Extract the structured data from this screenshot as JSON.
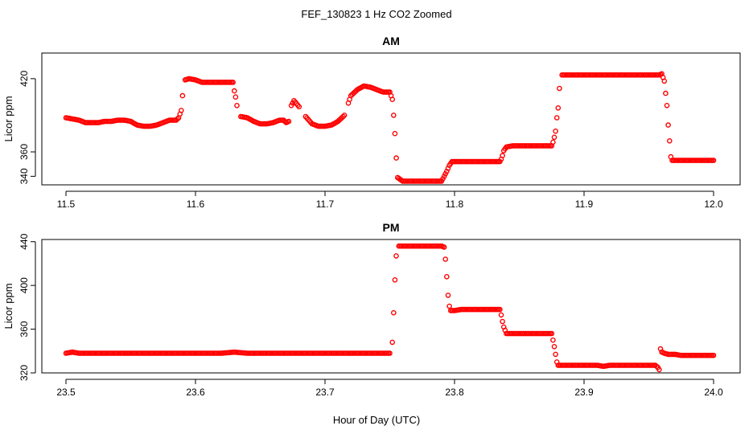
{
  "figure": {
    "title": "FEF_130823  1 Hz CO2 Zoomed",
    "xlabel": "Hour of Day (UTC)"
  },
  "colors": {
    "points": "#ff0000",
    "axis": "#000000",
    "background": "#ffffff"
  },
  "chart_data": [
    {
      "type": "scatter",
      "title": "AM",
      "ylabel": "Licor ppm",
      "xlim": [
        11.5,
        12.0
      ],
      "ylim": [
        333,
        441
      ],
      "xticks": [
        "11.5",
        "11.6",
        "11.7",
        "11.8",
        "11.9",
        "12.0"
      ],
      "yticks": [
        "340",
        "360",
        "420"
      ],
      "grid": false,
      "marker": "open circle",
      "points": [
        [
          11.5,
          388
        ],
        [
          11.505,
          387
        ],
        [
          11.51,
          386
        ],
        [
          11.515,
          384
        ],
        [
          11.52,
          384
        ],
        [
          11.525,
          384
        ],
        [
          11.53,
          385
        ],
        [
          11.535,
          385
        ],
        [
          11.54,
          386
        ],
        [
          11.545,
          386
        ],
        [
          11.55,
          385
        ],
        [
          11.555,
          382
        ],
        [
          11.56,
          381
        ],
        [
          11.565,
          381
        ],
        [
          11.57,
          382
        ],
        [
          11.575,
          384
        ],
        [
          11.58,
          386
        ],
        [
          11.585,
          386
        ],
        [
          11.587,
          388
        ],
        [
          11.588,
          391
        ],
        [
          11.589,
          394
        ],
        [
          11.59,
          406
        ],
        [
          11.592,
          419
        ],
        [
          11.595,
          420
        ],
        [
          11.6,
          419
        ],
        [
          11.605,
          417
        ],
        [
          11.61,
          417
        ],
        [
          11.615,
          417
        ],
        [
          11.62,
          417
        ],
        [
          11.625,
          417
        ],
        [
          11.629,
          417
        ],
        [
          11.63,
          410
        ],
        [
          11.631,
          405
        ],
        [
          11.632,
          398
        ],
        [
          11.635,
          389
        ],
        [
          11.64,
          388
        ],
        [
          11.645,
          385
        ],
        [
          11.65,
          383
        ],
        [
          11.655,
          383
        ],
        [
          11.66,
          384
        ],
        [
          11.665,
          386
        ],
        [
          11.668,
          386
        ],
        [
          11.67,
          384
        ],
        [
          11.672,
          385
        ],
        [
          11.674,
          398
        ],
        [
          11.676,
          402
        ],
        [
          11.68,
          397
        ],
        [
          11.685,
          389
        ],
        [
          11.69,
          383
        ],
        [
          11.695,
          381
        ],
        [
          11.7,
          381
        ],
        [
          11.705,
          382
        ],
        [
          11.71,
          385
        ],
        [
          11.715,
          390
        ],
        [
          11.718,
          400
        ],
        [
          11.72,
          406
        ],
        [
          11.725,
          411
        ],
        [
          11.73,
          414
        ],
        [
          11.735,
          413
        ],
        [
          11.74,
          411
        ],
        [
          11.745,
          409
        ],
        [
          11.75,
          409
        ],
        [
          11.752,
          403
        ],
        [
          11.753,
          390
        ],
        [
          11.754,
          375
        ],
        [
          11.755,
          355
        ],
        [
          11.756,
          339
        ],
        [
          11.76,
          336
        ],
        [
          11.765,
          336
        ],
        [
          11.77,
          336
        ],
        [
          11.775,
          336
        ],
        [
          11.78,
          336
        ],
        [
          11.785,
          336
        ],
        [
          11.79,
          336
        ],
        [
          11.792,
          340
        ],
        [
          11.794,
          344
        ],
        [
          11.796,
          349
        ],
        [
          11.798,
          352
        ],
        [
          11.805,
          352
        ],
        [
          11.81,
          352
        ],
        [
          11.815,
          352
        ],
        [
          11.82,
          352
        ],
        [
          11.825,
          352
        ],
        [
          11.83,
          352
        ],
        [
          11.835,
          352
        ],
        [
          11.836,
          354
        ],
        [
          11.837,
          357
        ],
        [
          11.838,
          361
        ],
        [
          11.84,
          364
        ],
        [
          11.845,
          365
        ],
        [
          11.85,
          365
        ],
        [
          11.855,
          365
        ],
        [
          11.86,
          365
        ],
        [
          11.865,
          365
        ],
        [
          11.87,
          365
        ],
        [
          11.875,
          365
        ],
        [
          11.876,
          368
        ],
        [
          11.877,
          372
        ],
        [
          11.878,
          377
        ],
        [
          11.879,
          388
        ],
        [
          11.88,
          396
        ],
        [
          11.881,
          412
        ],
        [
          11.883,
          423
        ],
        [
          11.89,
          423
        ],
        [
          11.9,
          423
        ],
        [
          11.91,
          423
        ],
        [
          11.92,
          423
        ],
        [
          11.93,
          423
        ],
        [
          11.94,
          423
        ],
        [
          11.95,
          423
        ],
        [
          11.958,
          423
        ],
        [
          11.96,
          424
        ],
        [
          11.962,
          418
        ],
        [
          11.963,
          408
        ],
        [
          11.964,
          398
        ],
        [
          11.965,
          382
        ],
        [
          11.966,
          369
        ],
        [
          11.967,
          356
        ],
        [
          11.968,
          353
        ],
        [
          11.97,
          353
        ],
        [
          11.975,
          353
        ],
        [
          11.98,
          353
        ],
        [
          11.985,
          353
        ],
        [
          11.99,
          353
        ],
        [
          11.995,
          353
        ],
        [
          12.0,
          353
        ]
      ]
    },
    {
      "type": "scatter",
      "title": "PM",
      "ylabel": "Licor ppm",
      "xlim": [
        23.5,
        24.0
      ],
      "ylim": [
        320,
        442
      ],
      "xticks": [
        "23.5",
        "23.6",
        "23.7",
        "23.8",
        "23.9",
        "24.0"
      ],
      "yticks": [
        "320",
        "360",
        "400",
        "440"
      ],
      "grid": false,
      "marker": "open circle",
      "points": [
        [
          23.5,
          338
        ],
        [
          23.505,
          339
        ],
        [
          23.51,
          338
        ],
        [
          23.52,
          338
        ],
        [
          23.53,
          338
        ],
        [
          23.54,
          338
        ],
        [
          23.55,
          338
        ],
        [
          23.56,
          338
        ],
        [
          23.57,
          338
        ],
        [
          23.58,
          338
        ],
        [
          23.59,
          338
        ],
        [
          23.6,
          338
        ],
        [
          23.61,
          338
        ],
        [
          23.62,
          338
        ],
        [
          23.63,
          339
        ],
        [
          23.64,
          338
        ],
        [
          23.65,
          338
        ],
        [
          23.66,
          338
        ],
        [
          23.67,
          338
        ],
        [
          23.68,
          338
        ],
        [
          23.69,
          338
        ],
        [
          23.7,
          338
        ],
        [
          23.71,
          338
        ],
        [
          23.72,
          338
        ],
        [
          23.73,
          338
        ],
        [
          23.74,
          338
        ],
        [
          23.75,
          338
        ],
        [
          23.752,
          348
        ],
        [
          23.753,
          375
        ],
        [
          23.754,
          405
        ],
        [
          23.755,
          427
        ],
        [
          23.757,
          436
        ],
        [
          23.76,
          436
        ],
        [
          23.765,
          436
        ],
        [
          23.77,
          436
        ],
        [
          23.775,
          436
        ],
        [
          23.78,
          436
        ],
        [
          23.785,
          436
        ],
        [
          23.79,
          436
        ],
        [
          23.792,
          435
        ],
        [
          23.793,
          424
        ],
        [
          23.794,
          408
        ],
        [
          23.795,
          391
        ],
        [
          23.796,
          381
        ],
        [
          23.797,
          377
        ],
        [
          23.8,
          377
        ],
        [
          23.805,
          378
        ],
        [
          23.81,
          378
        ],
        [
          23.815,
          378
        ],
        [
          23.82,
          378
        ],
        [
          23.825,
          378
        ],
        [
          23.83,
          378
        ],
        [
          23.835,
          378
        ],
        [
          23.836,
          373
        ],
        [
          23.837,
          367
        ],
        [
          23.838,
          362
        ],
        [
          23.84,
          356
        ],
        [
          23.845,
          356
        ],
        [
          23.85,
          356
        ],
        [
          23.855,
          356
        ],
        [
          23.86,
          356
        ],
        [
          23.865,
          356
        ],
        [
          23.87,
          356
        ],
        [
          23.875,
          356
        ],
        [
          23.876,
          350
        ],
        [
          23.877,
          344
        ],
        [
          23.878,
          337
        ],
        [
          23.879,
          330
        ],
        [
          23.88,
          327
        ],
        [
          23.885,
          327
        ],
        [
          23.89,
          327
        ],
        [
          23.895,
          327
        ],
        [
          23.9,
          327
        ],
        [
          23.905,
          327
        ],
        [
          23.91,
          327
        ],
        [
          23.915,
          326
        ],
        [
          23.92,
          327
        ],
        [
          23.925,
          327
        ],
        [
          23.93,
          327
        ],
        [
          23.935,
          327
        ],
        [
          23.94,
          327
        ],
        [
          23.945,
          327
        ],
        [
          23.95,
          327
        ],
        [
          23.955,
          327
        ],
        [
          23.957,
          325
        ],
        [
          23.958,
          323
        ],
        [
          23.959,
          342
        ],
        [
          23.96,
          339
        ],
        [
          23.962,
          338
        ],
        [
          23.965,
          337
        ],
        [
          23.97,
          337
        ],
        [
          23.975,
          336
        ],
        [
          23.98,
          336
        ],
        [
          23.985,
          336
        ],
        [
          23.99,
          336
        ],
        [
          23.995,
          336
        ],
        [
          24.0,
          336
        ]
      ]
    }
  ]
}
